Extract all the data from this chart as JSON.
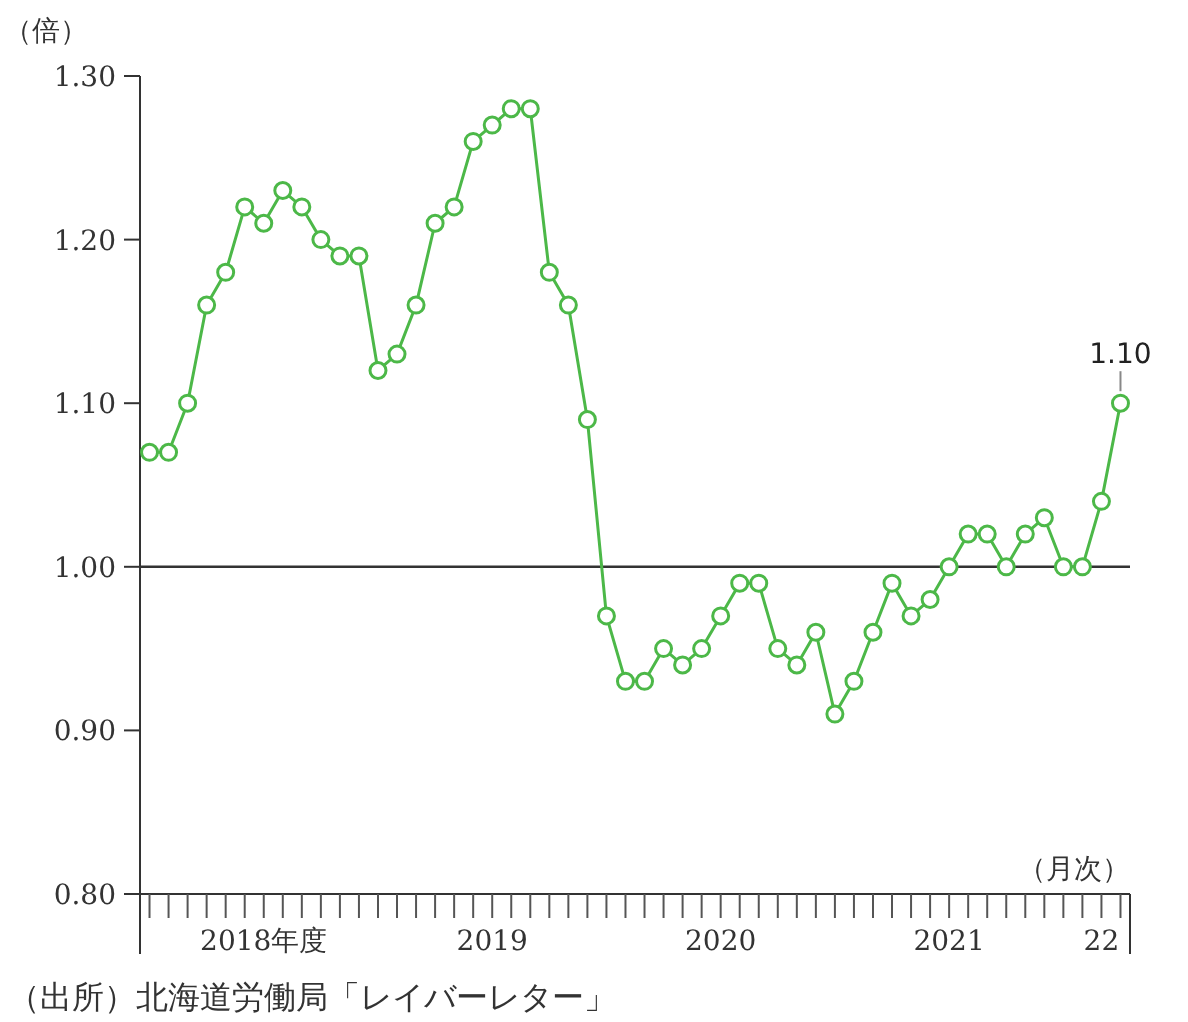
{
  "chart_data": {
    "type": "line",
    "ylabel": "（倍）",
    "xlabel": "（月次）",
    "categories": [
      null,
      null,
      null,
      null,
      null,
      null,
      "2018年度",
      null,
      null,
      null,
      null,
      null,
      null,
      null,
      null,
      null,
      null,
      null,
      "2019",
      null,
      null,
      null,
      null,
      null,
      null,
      null,
      null,
      null,
      null,
      null,
      "2020",
      null,
      null,
      null,
      null,
      null,
      null,
      null,
      null,
      null,
      null,
      null,
      "2021",
      null,
      null,
      null,
      null,
      null,
      null,
      null,
      "22",
      null
    ],
    "series": [
      {
        "color": "#4cb848",
        "values": [
          1.07,
          1.07,
          1.1,
          1.16,
          1.18,
          1.22,
          1.21,
          1.23,
          1.22,
          1.2,
          1.19,
          1.19,
          1.12,
          1.13,
          1.16,
          1.21,
          1.22,
          1.26,
          1.27,
          1.28,
          1.28,
          1.18,
          1.16,
          1.09,
          0.97,
          0.93,
          0.93,
          0.95,
          0.94,
          0.95,
          0.97,
          0.99,
          0.99,
          0.95,
          0.94,
          0.96,
          0.91,
          0.93,
          0.96,
          0.99,
          0.97,
          0.98,
          1.0,
          1.02,
          1.02,
          1.0,
          1.02,
          1.03,
          1.0,
          1.0,
          1.04,
          1.1
        ],
        "value_labels": [
          null,
          null,
          null,
          null,
          null,
          null,
          null,
          null,
          null,
          null,
          null,
          null,
          null,
          null,
          null,
          null,
          null,
          null,
          null,
          null,
          null,
          null,
          null,
          null,
          null,
          null,
          null,
          null,
          null,
          null,
          null,
          null,
          null,
          null,
          null,
          null,
          null,
          null,
          null,
          null,
          null,
          null,
          null,
          null,
          null,
          null,
          null,
          null,
          null,
          null,
          null,
          "1.10"
        ]
      }
    ],
    "ylim": [
      0.8,
      1.3
    ],
    "yticks": [
      {
        "value": 0.8,
        "label": "0.80"
      },
      {
        "value": 0.9,
        "label": "0.90"
      },
      {
        "value": 1.0,
        "label": "1.00"
      },
      {
        "value": 1.1,
        "label": "1.10"
      },
      {
        "value": 1.2,
        "label": "1.20"
      },
      {
        "value": 1.3,
        "label": "1.30"
      }
    ],
    "ref_lines": [
      {
        "axis": "y",
        "value": 1.0,
        "color": "#333333"
      }
    ],
    "marker": "circle",
    "line_style": "solid",
    "grid": false,
    "annotations": [
      "（出所）北海道労働局「レイバーレター」"
    ]
  }
}
